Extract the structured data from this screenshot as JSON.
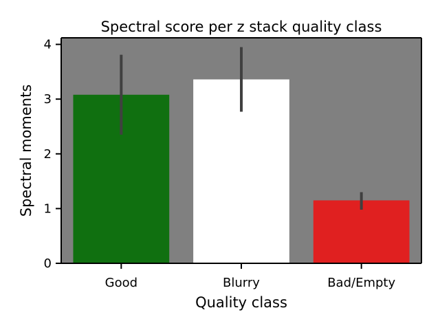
{
  "chart_data": {
    "type": "bar",
    "title": "Spectral score per z stack quality class",
    "xlabel": "Quality class",
    "ylabel": "Spectral moments",
    "categories": [
      "Good",
      "Blurry",
      "Bad/Empty"
    ],
    "values": [
      3.08,
      3.36,
      1.15
    ],
    "error_low": [
      2.35,
      2.77,
      0.98
    ],
    "error_high": [
      3.81,
      3.95,
      1.3
    ],
    "ylim": [
      0,
      4.12
    ],
    "yticks": [
      0,
      1,
      2,
      3,
      4
    ],
    "bar_colors": [
      "#107010",
      "#ffffff",
      "#e02020"
    ],
    "plot_background": "#808080",
    "error_bar_color": "#404040",
    "grid": false,
    "legend": "none"
  }
}
